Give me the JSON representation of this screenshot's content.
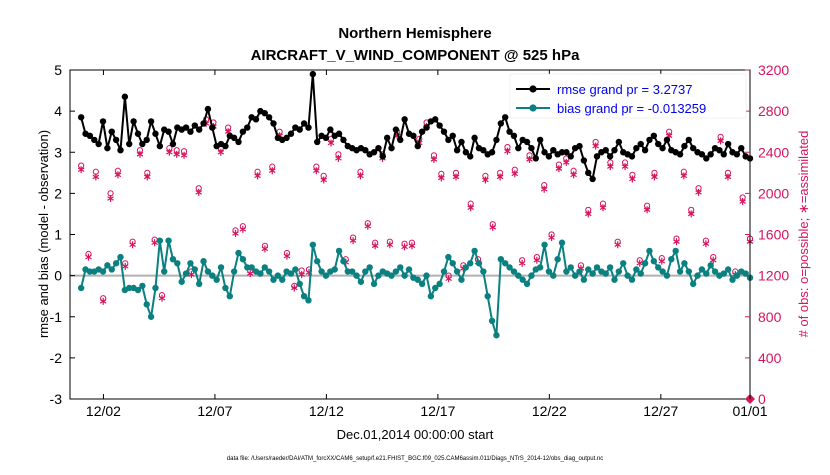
{
  "chart_data": {
    "type": "line",
    "title": "Northern Hemisphere",
    "subtitle": "AIRCRAFT_V_WIND_COMPONENT @ 525 hPa",
    "xlabel": "Dec.01,2014 00:00:00 start",
    "ylabel": "rmse and bias (model - observation)",
    "y2label": "# of obs: o=possible; ∗=assimilated",
    "xlim": [
      0.5,
      31.0
    ],
    "ylim": [
      -3,
      5
    ],
    "y2lim": [
      0,
      3200
    ],
    "x_tick_values": [
      2,
      7,
      12,
      17,
      22,
      27,
      31
    ],
    "x_tick_labels": [
      "12/02",
      "12/07",
      "12/12",
      "12/17",
      "12/22",
      "12/27",
      "01/01"
    ],
    "y_ticks": [
      -3,
      -2,
      -1,
      0,
      1,
      2,
      3,
      4,
      5
    ],
    "y2_ticks": [
      0,
      400,
      800,
      1200,
      1600,
      2000,
      2400,
      2800,
      3200
    ],
    "zero_line": 0,
    "legend": {
      "position": "top-right",
      "entries": [
        {
          "label": "rmse grand pr = 3.2737",
          "color": "#000000"
        },
        {
          "label": "bias grand pr = -0.013259",
          "color": "#0a8080"
        }
      ]
    },
    "footnote": "data file: /Users/raeder/DAI/ATM_forcXX/CAM6_setup/f.e21.FHIST_BGC.f09_025.CAM6assim.011/Diags_NTrS_2014-12/obs_diag_output.nc",
    "colors": {
      "rmse": "#000000",
      "bias": "#0a8080",
      "obs": "#d6145e",
      "zero": "#b0b0b0"
    },
    "series": [
      {
        "name": "rmse",
        "color": "#000000",
        "values": [
          3.85,
          3.45,
          3.4,
          3.3,
          3.2,
          3.75,
          3.1,
          3.5,
          3.3,
          3.05,
          4.35,
          3.2,
          3.75,
          3.45,
          3.2,
          3.3,
          3.75,
          3.45,
          3.15,
          3.55,
          3.5,
          3.2,
          3.6,
          3.55,
          3.6,
          3.5,
          3.65,
          3.55,
          3.7,
          4.05,
          3.6,
          3.15,
          3.2,
          3.15,
          3.4,
          3.35,
          3.25,
          3.5,
          3.6,
          3.85,
          3.8,
          4.0,
          3.95,
          3.85,
          3.7,
          3.35,
          3.3,
          3.35,
          3.45,
          3.6,
          3.55,
          3.7,
          3.6,
          4.9,
          3.25,
          3.4,
          3.35,
          3.55,
          3.4,
          3.45,
          3.3,
          3.15,
          3.1,
          3.05,
          3.1,
          3.05,
          2.95,
          3.0,
          3.1,
          2.9,
          3.35,
          3.1,
          3.55,
          3.3,
          3.8,
          3.45,
          3.4,
          3.15,
          3.5,
          3.6,
          3.75,
          3.8,
          3.65,
          3.5,
          3.3,
          3.4,
          3.05,
          3.25,
          3.0,
          2.9,
          3.35,
          3.1,
          3.05,
          2.95,
          3.0,
          3.3,
          3.7,
          3.85,
          3.5,
          3.4,
          3.1,
          3.3,
          3.25,
          3.1,
          2.85,
          3.3,
          3.0,
          2.9,
          3.05,
          2.95,
          3.0,
          3.0,
          2.9,
          3.1,
          3.15,
          2.8,
          2.5,
          2.35,
          2.9,
          3.0,
          3.05,
          2.9,
          3.05,
          3.25,
          3.0,
          2.95,
          2.9,
          3.1,
          3.2,
          3.05,
          3.3,
          3.4,
          3.2,
          3.1,
          3.3,
          3.05,
          3.0,
          2.95,
          3.15,
          3.3,
          3.1,
          3.0,
          2.95,
          2.85,
          2.95,
          3.1,
          3.05,
          2.95,
          3.2,
          3.0,
          2.95,
          3.1,
          2.9,
          2.85
        ]
      },
      {
        "name": "bias",
        "color": "#0a8080",
        "values": [
          -0.3,
          0.15,
          0.1,
          0.1,
          0.15,
          0.1,
          0.25,
          0.15,
          0.3,
          0.45,
          -0.35,
          -0.3,
          -0.3,
          -0.35,
          -0.25,
          -0.7,
          -1.0,
          -0.3,
          0.85,
          0.1,
          0.85,
          0.4,
          0.3,
          -0.15,
          0.05,
          0.3,
          0.15,
          -0.2,
          0.35,
          0.1,
          0.0,
          -0.1,
          0.2,
          -0.3,
          -0.5,
          0.1,
          0.55,
          0.4,
          0.2,
          0.2,
          0.1,
          0.05,
          0.2,
          0.1,
          -0.1,
          0.0,
          -0.1,
          0.1,
          0.05,
          0.15,
          -0.2,
          -0.5,
          -0.6,
          0.75,
          0.35,
          0.1,
          0.0,
          0.1,
          0.15,
          0.6,
          0.35,
          0.1,
          0.1,
          0.0,
          -0.15,
          0.1,
          0.2,
          -0.2,
          0.0,
          0.1,
          0.05,
          0.0,
          0.1,
          0.2,
          0.0,
          0.15,
          -0.05,
          -0.1,
          -0.2,
          0.0,
          -0.5,
          -0.3,
          -0.2,
          0.1,
          0.45,
          0.3,
          0.1,
          -0.1,
          0.2,
          0.3,
          0.6,
          0.3,
          0.1,
          -0.5,
          -1.1,
          -1.45,
          0.4,
          0.3,
          0.2,
          0.1,
          0.0,
          -0.1,
          -0.2,
          0.0,
          0.15,
          0.2,
          0.75,
          0.1,
          0.0,
          0.4,
          0.8,
          0.1,
          0.2,
          0.0,
          0.1,
          -0.1,
          0.15,
          0.05,
          0.2,
          0.1,
          0.05,
          0.2,
          -0.1,
          0.1,
          0.3,
          0.0,
          -0.1,
          0.15,
          0.05,
          0.3,
          0.6,
          0.35,
          0.2,
          0.1,
          0.0,
          0.4,
          0.6,
          0.1,
          0.3,
          0.1,
          -0.2,
          0.0,
          0.15,
          0.05,
          0.25,
          0.1,
          0.0,
          0.05,
          0.15,
          -0.1,
          0.0,
          0.1,
          0.05,
          -0.05
        ]
      },
      {
        "name": "obs_possible",
        "color": "#d6145e",
        "marker": "o",
        "axis": "right",
        "values": [
          2270,
          1410,
          2210,
          980,
          2000,
          2220,
          1320,
          1530,
          2420,
          2200,
          1550,
          1010,
          2440,
          2420,
          2410,
          1240,
          2050,
          2720,
          2690,
          2440,
          2640,
          1640,
          1680,
          1250,
          2210,
          1490,
          2260,
          2600,
          1420,
          1100,
          1250,
          1260,
          2260,
          2170,
          2530,
          2380,
          1360,
          1570,
          2210,
          1710,
          1520,
          2380,
          1530,
          2600,
          1510,
          1520,
          2530,
          2690,
          2370,
          2190,
          1200,
          2200,
          1300,
          1900,
          1360,
          2170,
          1700,
          2200,
          2450,
          2230,
          1350,
          2370,
          1380,
          2080,
          1600,
          2280,
          2340,
          2220,
          1300,
          1840,
          2500,
          1900,
          2300,
          1530,
          2300,
          2180,
          1350,
          1880,
          2200,
          1370,
          2600,
          1560,
          2210,
          1840,
          2050,
          1540,
          1380,
          2550,
          2200,
          1240,
          1960,
          1560
        ]
      },
      {
        "name": "obs_assimilated",
        "color": "#d6145e",
        "marker": "*",
        "axis": "right",
        "values": [
          2230,
          1380,
          2160,
          950,
          1950,
          2180,
          1290,
          1500,
          2380,
          2160,
          1520,
          980,
          2400,
          2380,
          2370,
          1210,
          2010,
          2680,
          2650,
          2400,
          2600,
          1610,
          1650,
          1220,
          2170,
          1460,
          2220,
          2560,
          1390,
          1080,
          1210,
          1230,
          2220,
          2130,
          2490,
          2340,
          1330,
          1540,
          2170,
          1680,
          1490,
          2340,
          1500,
          2560,
          1480,
          1490,
          2490,
          2650,
          2330,
          2150,
          1170,
          2160,
          1270,
          1860,
          1330,
          2130,
          1670,
          2160,
          2410,
          2190,
          1320,
          2330,
          1350,
          2040,
          1570,
          2240,
          2300,
          2180,
          1270,
          1800,
          2460,
          1860,
          2260,
          1500,
          2260,
          2140,
          1320,
          1840,
          2160,
          1340,
          2560,
          1530,
          2170,
          1800,
          2010,
          1510,
          1350,
          2510,
          2160,
          1210,
          1920,
          1530
        ]
      }
    ]
  }
}
